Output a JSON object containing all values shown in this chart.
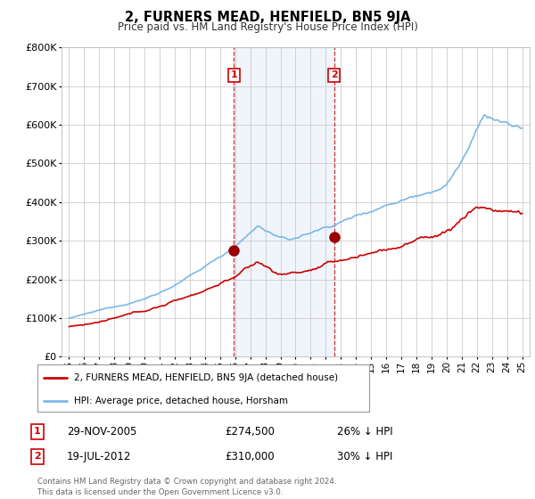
{
  "title": "2, FURNERS MEAD, HENFIELD, BN5 9JA",
  "subtitle": "Price paid vs. HM Land Registry's House Price Index (HPI)",
  "legend_line1": "2, FURNERS MEAD, HENFIELD, BN5 9JA (detached house)",
  "legend_line2": "HPI: Average price, detached house, Horsham",
  "annotation1_label": "1",
  "annotation1_date": "29-NOV-2005",
  "annotation1_price": "£274,500",
  "annotation1_hpi": "26% ↓ HPI",
  "annotation2_label": "2",
  "annotation2_date": "19-JUL-2012",
  "annotation2_price": "£310,000",
  "annotation2_hpi": "30% ↓ HPI",
  "footer": "Contains HM Land Registry data © Crown copyright and database right 2024.\nThis data is licensed under the Open Government Licence v3.0.",
  "hpi_color": "#7bb8e8",
  "hpi_fill_color": "#ddeeff",
  "price_color": "#cc0000",
  "marker_color": "#990000",
  "bg_color": "#ffffff",
  "plot_bg_color": "#ffffff",
  "grid_color": "#cccccc",
  "ylim": [
    0,
    800000
  ],
  "yticks": [
    0,
    100000,
    200000,
    300000,
    400000,
    500000,
    600000,
    700000,
    800000
  ],
  "sale1_x": 2005.91,
  "sale1_y": 274500,
  "sale2_x": 2012.54,
  "sale2_y": 310000,
  "xmin": 1994.5,
  "xmax": 2025.5
}
